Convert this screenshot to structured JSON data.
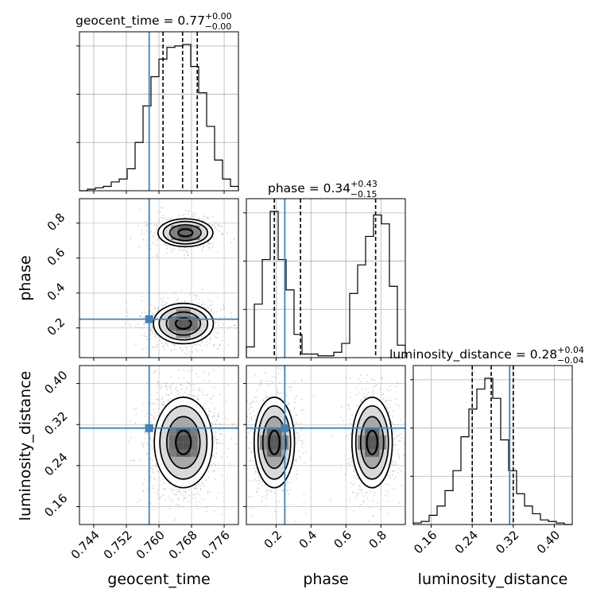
{
  "chart_data": {
    "type": "corner",
    "parameters": [
      "geocent_time",
      "phase",
      "luminosity_distance"
    ],
    "titles": [
      {
        "name": "geocent_time",
        "median": "0.77",
        "plus": "+0.00",
        "minus": "−0.00"
      },
      {
        "name": "phase",
        "median": "0.34",
        "plus": "+0.43",
        "minus": "−0.15"
      },
      {
        "name": "luminosity_distance",
        "median": "0.28",
        "plus": "+0.04",
        "minus": "−0.04"
      }
    ],
    "axis_labels": {
      "x": [
        "geocent_time",
        "phase",
        "luminosity_distance"
      ],
      "y": [
        "phase",
        "luminosity_distance"
      ]
    },
    "ranges": {
      "geocent_time": [
        0.7405,
        0.7795
      ],
      "phase": [
        0.03,
        0.94
      ],
      "luminosity_distance": [
        0.125,
        0.435
      ]
    },
    "ticks": {
      "geocent_time": [
        "0.744",
        "0.752",
        "0.760",
        "0.768",
        "0.776"
      ],
      "phase": [
        "0.2",
        "0.4",
        "0.6",
        "0.8"
      ],
      "luminosity_distance": [
        "0.16",
        "0.24",
        "0.32",
        "0.40"
      ]
    },
    "injection": {
      "geocent_time": 0.7576,
      "phase": 0.25,
      "luminosity_distance": 0.313
    },
    "quantiles": {
      "geocent_time": [
        0.761,
        0.7658,
        0.7694
      ],
      "phase": [
        0.19,
        0.34,
        0.77
      ],
      "luminosity_distance": [
        0.24,
        0.277,
        0.32
      ]
    },
    "histograms": {
      "geocent_time": {
        "edges_start": 0.7405,
        "bin_width": 0.00195,
        "counts": [
          0,
          1,
          2,
          3,
          6,
          8,
          15,
          33,
          58,
          78,
          90,
          98,
          99,
          100,
          85,
          67,
          44,
          21,
          8,
          3
        ]
      },
      "phase": {
        "edges_start": 0.03,
        "bin_width": 0.0455,
        "counts": [
          6,
          30,
          55,
          82,
          55,
          38,
          13,
          2,
          2,
          1,
          1,
          3,
          8,
          36,
          52,
          68,
          80,
          75,
          40,
          7
        ]
      },
      "luminosity_distance": {
        "edges_start": 0.125,
        "bin_width": 0.0155,
        "counts": [
          1,
          2,
          6,
          12,
          22,
          35,
          57,
          75,
          88,
          95,
          82,
          55,
          35,
          20,
          12,
          7,
          3,
          2,
          1,
          0
        ]
      }
    },
    "grid": true,
    "marginal_style": "step"
  }
}
